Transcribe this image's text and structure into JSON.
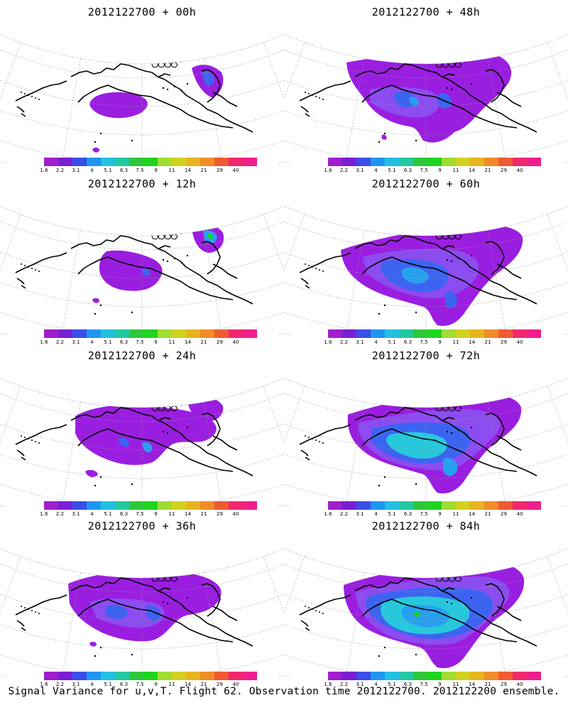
{
  "panels": [
    {
      "title": "2012122700 + 00h",
      "lead_hours": 0
    },
    {
      "title": "2012122700 + 48h",
      "lead_hours": 48
    },
    {
      "title": "2012122700 + 12h",
      "lead_hours": 12
    },
    {
      "title": "2012122700 + 60h",
      "lead_hours": 60
    },
    {
      "title": "2012122700 + 24h",
      "lead_hours": 24
    },
    {
      "title": "2012122700 + 72h",
      "lead_hours": 72
    },
    {
      "title": "2012122700 + 36h",
      "lead_hours": 36
    },
    {
      "title": "2012122700 + 84h",
      "lead_hours": 84
    }
  ],
  "colorbar": {
    "labels": [
      "1.6",
      "2.2",
      "3.1",
      "4",
      "5.1",
      "6.3",
      "7.5",
      "9",
      "11",
      "14",
      "21",
      "29",
      "40"
    ],
    "colors": [
      "#a01ecc",
      "#7a1ed4",
      "#3a4ee8",
      "#1e96f0",
      "#22c0e0",
      "#22c8a0",
      "#2cc83a",
      "#1ed41e",
      "#a0dc32",
      "#d2d21e",
      "#e6b41e",
      "#f08c28",
      "#f05a32",
      "#f0286e",
      "#f01e8c"
    ]
  },
  "caption": "Signal Variance for u,v,T. Flight 62. Observation time 2012122700. 2012122200 ensemble.",
  "colors": {
    "purple": "#9a1ee0",
    "lavender": "#8c4cf0",
    "blue": "#3c64f0",
    "lightblue": "#28a0f0",
    "cyan": "#28c8dc",
    "green": "#1ed41e",
    "coast": "#000000",
    "grid": "#9a9a9a"
  }
}
